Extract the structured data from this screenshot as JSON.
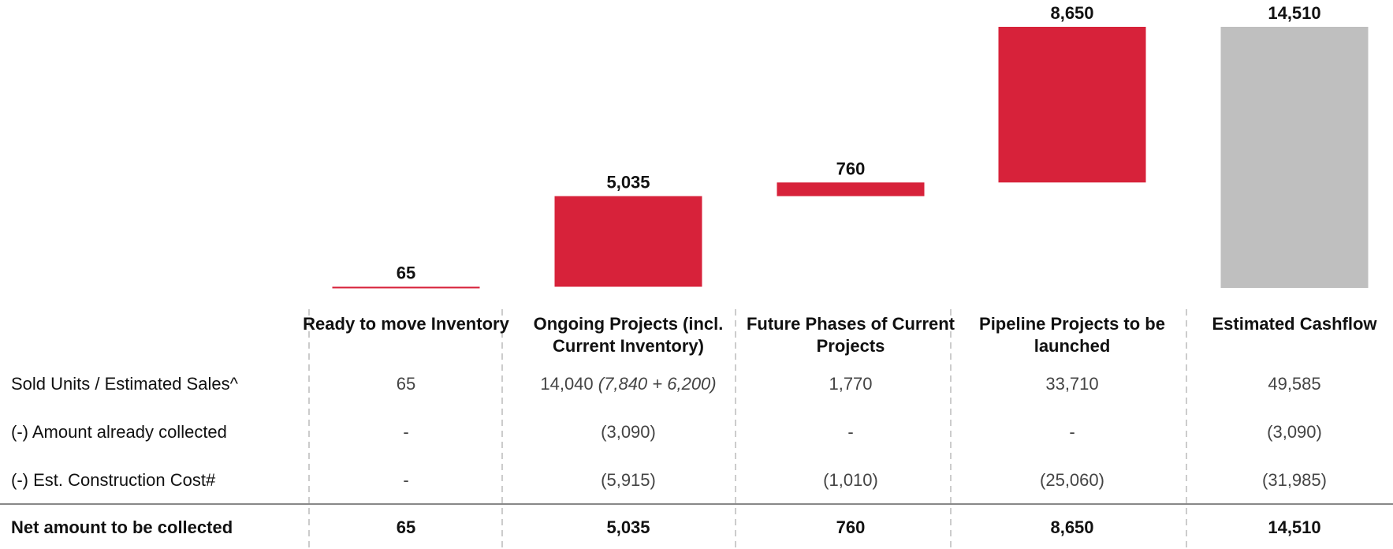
{
  "chart_data": {
    "type": "waterfall",
    "categories": [
      "Ready to move Inventory",
      "Ongoing Projects (incl. Current Inventory)",
      "Future Phases of Current Projects",
      "Pipeline Projects to be launched",
      "Estimated Cashflow"
    ],
    "values": [
      65,
      5035,
      760,
      8650,
      14510
    ],
    "value_labels": [
      "65",
      "5,035",
      "760",
      "8,650",
      "14,510"
    ],
    "colors": {
      "increase": "#d7223a",
      "total": "#bfbfbf"
    }
  },
  "table": {
    "rows": [
      {
        "label": "Sold Units / Estimated Sales^",
        "cells": [
          "65",
          {
            "text": "14,040",
            "note": "(7,840 + 6,200)"
          },
          "1,770",
          "33,710",
          "49,585"
        ]
      },
      {
        "label": "(-)  Amount already collected",
        "cells": [
          "-",
          "(3,090)",
          "-",
          "-",
          "(3,090)"
        ]
      },
      {
        "label": "(-) Est. Construction Cost#",
        "cells": [
          "-",
          "(5,915)",
          "(1,010)",
          "(25,060)",
          "(31,985)"
        ]
      },
      {
        "label": "Net amount to be collected",
        "cells": [
          "65",
          "5,035",
          "760",
          "8,650",
          "14,510"
        ],
        "bold": true
      }
    ]
  }
}
